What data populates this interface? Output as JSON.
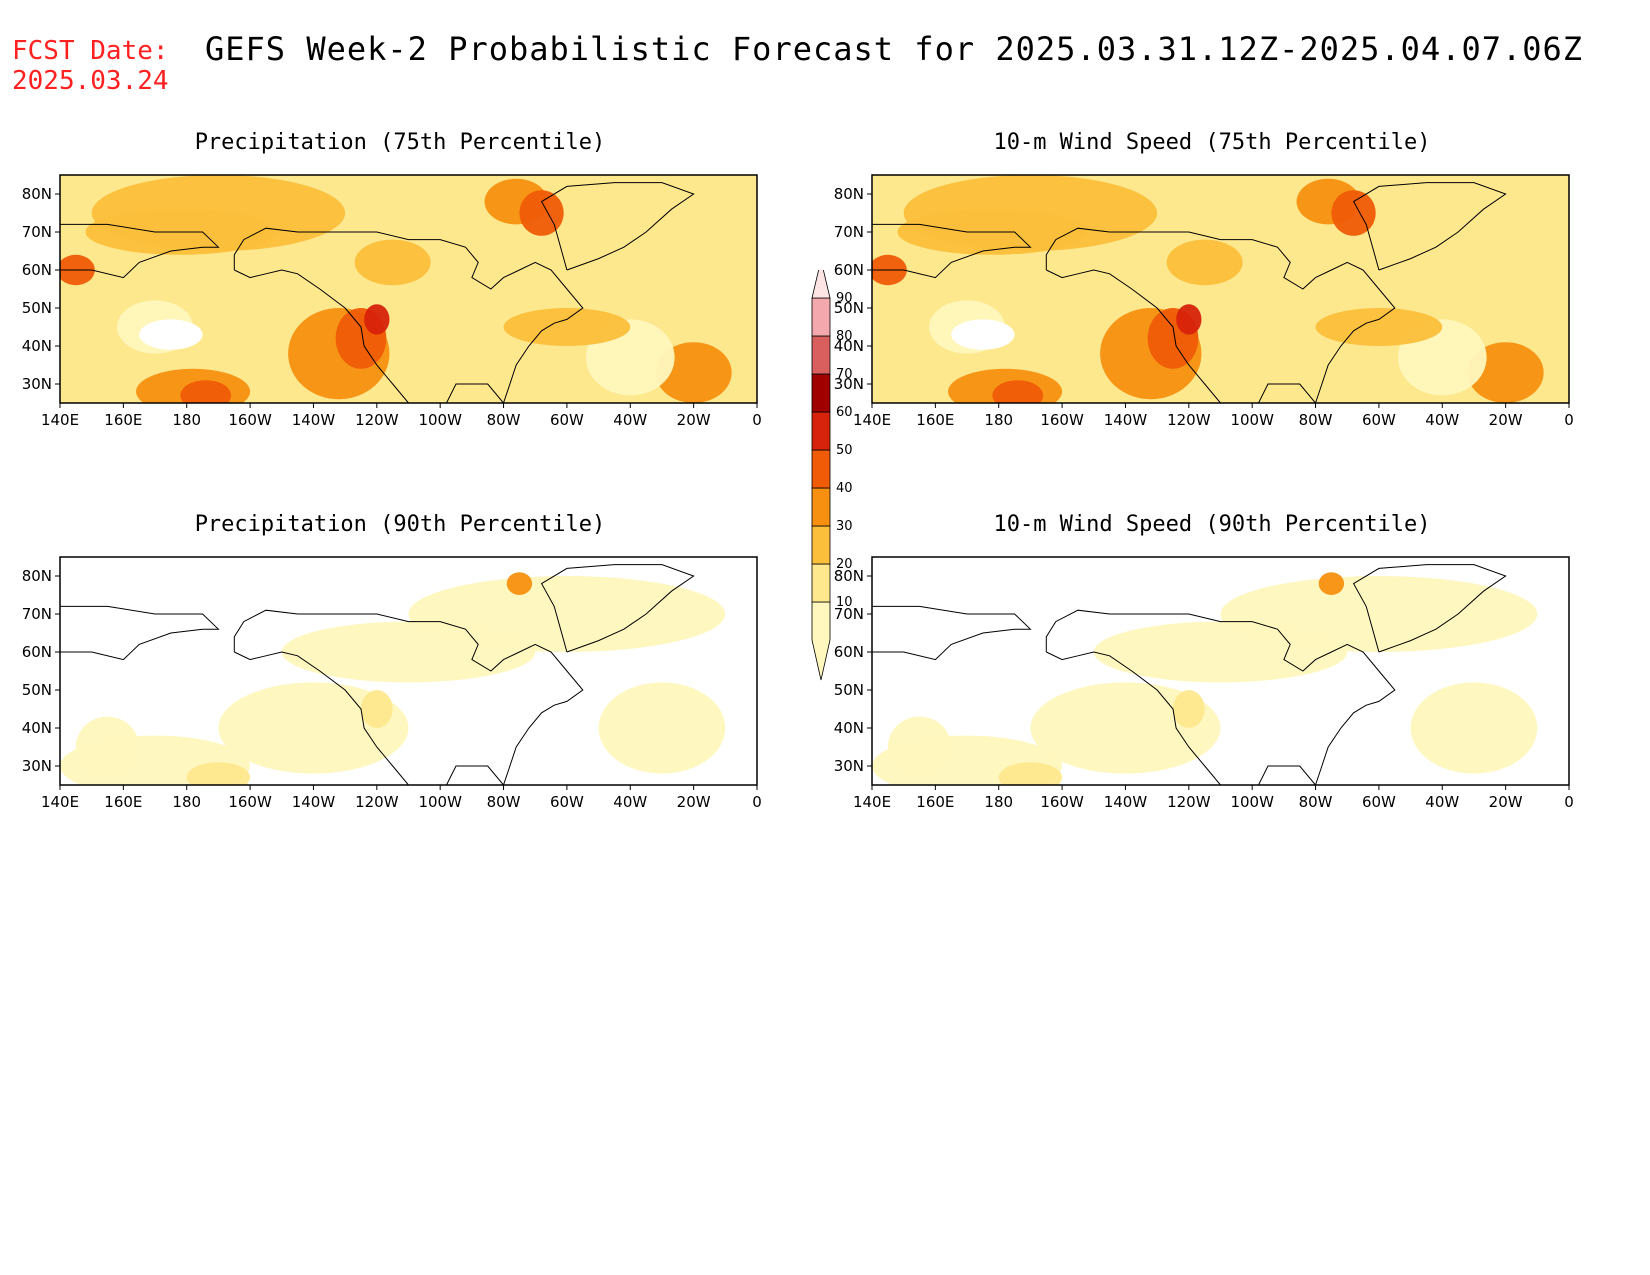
{
  "header": {
    "fcst_label": "FCST Date:",
    "fcst_date": "2025.03.24",
    "title": "GEFS Week-2 Probabilistic Forecast for 2025.03.31.12Z-2025.04.07.06Z"
  },
  "panels": [
    {
      "title": "Precipitation (75th Percentile)",
      "level": "high"
    },
    {
      "title": "10-m Wind Speed (75th Percentile)",
      "level": "high"
    },
    {
      "title": "Precipitation (90th Percentile)",
      "level": "low"
    },
    {
      "title": "10-m Wind Speed (90th Percentile)",
      "level": "low"
    }
  ],
  "axes": {
    "lon_ticks": [
      "140E",
      "160E",
      "180",
      "160W",
      "140W",
      "120W",
      "100W",
      "80W",
      "60W",
      "40W",
      "20W",
      "0"
    ],
    "lat_ticks": [
      "80N",
      "70N",
      "60N",
      "50N",
      "40N",
      "30N"
    ]
  },
  "colorbar": {
    "levels": [
      "10",
      "20",
      "30",
      "40",
      "50",
      "60",
      "70",
      "80",
      "90"
    ],
    "colors": [
      "#fff7bd",
      "#fee88e",
      "#fbbf3b",
      "#f79010",
      "#ef5b06",
      "#d7230b",
      "#a00000",
      "#d95f5f",
      "#f2a8ac",
      "#fde5e5"
    ]
  }
}
